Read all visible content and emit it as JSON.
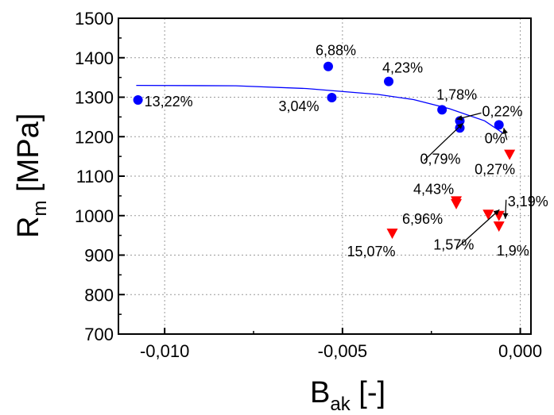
{
  "chart_data": {
    "type": "scatter",
    "xlabel": {
      "main": "B",
      "sub": "ak",
      "suffix": " [-]"
    },
    "ylabel": {
      "main": "R",
      "sub": "m",
      "suffix": " [MPa]"
    },
    "xlim": [
      -0.0113,
      0.0003
    ],
    "ylim": [
      700,
      1500
    ],
    "xticks": [
      -0.01,
      -0.005,
      0.0
    ],
    "xtick_labels": [
      "-0,010",
      "-0,005",
      "0,000"
    ],
    "yticks": [
      700,
      800,
      900,
      1000,
      1100,
      1200,
      1300,
      1400,
      1500
    ],
    "ytick_labels": [
      "700",
      "800",
      "900",
      "1000",
      "1100",
      "1200",
      "1300",
      "1400",
      "1500"
    ],
    "grid": {
      "major": "dotted"
    },
    "series": [
      {
        "marker": "circle",
        "color": "#0000ff",
        "points": [
          {
            "x": -0.01075,
            "y": 1293,
            "label": "13,22%"
          },
          {
            "x": -0.0054,
            "y": 1378,
            "label": "6,88%"
          },
          {
            "x": -0.0053,
            "y": 1299,
            "label": "3,04%"
          },
          {
            "x": -0.0037,
            "y": 1340,
            "label": "4,23%"
          },
          {
            "x": -0.0022,
            "y": 1268,
            "label": "1,78%"
          },
          {
            "x": -0.0017,
            "y": 1240,
            "label": "0,22%"
          },
          {
            "x": -0.0017,
            "y": 1222,
            "label": "0,79%"
          },
          {
            "x": -0.0006,
            "y": 1230,
            "label": "0%"
          }
        ]
      },
      {
        "marker": "triangle-down",
        "color": "#ff0000",
        "points": [
          {
            "x": -0.0003,
            "y": 1155,
            "label": "0,27%"
          },
          {
            "x": -0.0018,
            "y": 1037,
            "label": "4,43%"
          },
          {
            "x": -0.0018,
            "y": 1030,
            "label": "6,96%"
          },
          {
            "x": -0.0036,
            "y": 955,
            "label": "15,07%"
          },
          {
            "x": -0.0009,
            "y": 1003,
            "label": "1,57%"
          },
          {
            "x": -0.0006,
            "y": 1000,
            "label": "3,19%"
          },
          {
            "x": -0.0006,
            "y": 973,
            "label": "1,9%"
          }
        ]
      }
    ],
    "fit_line": {
      "color": "#0000ff",
      "points": [
        [
          -0.0108,
          1330
        ],
        [
          -0.008,
          1329
        ],
        [
          -0.006,
          1322
        ],
        [
          -0.004,
          1307
        ],
        [
          -0.003,
          1294
        ],
        [
          -0.002,
          1271
        ],
        [
          -0.001,
          1240
        ],
        [
          -0.0005,
          1210
        ]
      ]
    }
  }
}
